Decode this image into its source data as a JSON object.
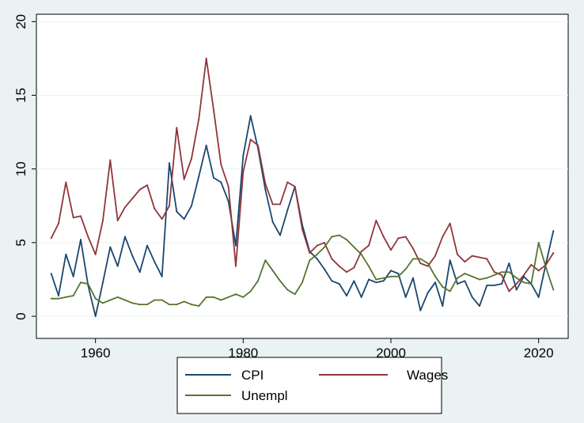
{
  "chart_data": {
    "type": "line",
    "title": "",
    "xlabel": "",
    "ylabel": "",
    "xlim": [
      1952,
      2024
    ],
    "ylim": [
      -1.5,
      20.5
    ],
    "x_ticks": [
      1960,
      1980,
      2000,
      2020
    ],
    "y_ticks": [
      0,
      5,
      10,
      15,
      20
    ],
    "x_tick_labels": [
      "1960",
      "1980",
      "2000",
      "2020"
    ],
    "y_tick_labels": [
      "0",
      "5",
      "10",
      "15",
      "20"
    ],
    "grid": "horizontal",
    "legend_position": "bottom",
    "x": [
      1954,
      1955,
      1956,
      1957,
      1958,
      1959,
      1960,
      1961,
      1962,
      1963,
      1964,
      1965,
      1966,
      1967,
      1968,
      1969,
      1970,
      1971,
      1972,
      1973,
      1974,
      1975,
      1976,
      1977,
      1978,
      1979,
      1980,
      1981,
      1982,
      1983,
      1984,
      1985,
      1986,
      1987,
      1988,
      1989,
      1990,
      1991,
      1992,
      1993,
      1994,
      1995,
      1996,
      1997,
      1998,
      1999,
      2000,
      2001,
      2002,
      2003,
      2004,
      2005,
      2006,
      2007,
      2008,
      2009,
      2010,
      2011,
      2012,
      2013,
      2014,
      2015,
      2016,
      2017,
      2018,
      2019,
      2020,
      2021,
      2022
    ],
    "series": [
      {
        "name": "CPI",
        "color": "#1a476f",
        "values": [
          2.9,
          1.4,
          4.2,
          2.7,
          5.2,
          2.1,
          0.0,
          2.3,
          4.7,
          3.4,
          5.4,
          4.1,
          3.0,
          4.8,
          3.7,
          2.7,
          10.4,
          7.1,
          6.6,
          7.5,
          9.5,
          11.6,
          9.4,
          9.1,
          7.8,
          4.8,
          10.9,
          13.6,
          11.4,
          8.6,
          6.4,
          5.5,
          7.2,
          8.8,
          6.2,
          4.4,
          3.9,
          3.2,
          2.4,
          2.2,
          1.4,
          2.4,
          1.3,
          2.5,
          2.3,
          2.4,
          3.1,
          2.9,
          1.3,
          2.6,
          0.4,
          1.6,
          2.3,
          0.7,
          3.8,
          2.2,
          2.4,
          1.3,
          0.7,
          2.1,
          2.1,
          2.2,
          3.6,
          1.8,
          2.7,
          2.2,
          1.3,
          3.6,
          5.8
        ]
      },
      {
        "name": "Wages",
        "color": "#90353b",
        "values": [
          5.3,
          6.3,
          9.1,
          6.7,
          6.8,
          5.4,
          4.2,
          6.5,
          10.6,
          6.5,
          7.4,
          8.0,
          8.6,
          8.9,
          7.3,
          6.6,
          7.5,
          12.8,
          9.3,
          10.7,
          13.4,
          17.5,
          14.0,
          10.3,
          8.8,
          3.4,
          9.8,
          12.0,
          11.6,
          9.0,
          7.6,
          7.6,
          9.1,
          8.8,
          5.9,
          4.3,
          4.8,
          5.0,
          3.9,
          3.4,
          3.0,
          3.3,
          4.4,
          4.8,
          6.5,
          5.4,
          4.5,
          5.3,
          5.4,
          4.6,
          3.6,
          3.4,
          4.1,
          5.4,
          6.3,
          4.2,
          3.7,
          4.1,
          4.0,
          3.9,
          3.0,
          2.8,
          1.7,
          2.2,
          2.8,
          3.5,
          3.1,
          3.5,
          4.3
        ]
      },
      {
        "name": "Unempl",
        "color": "#55752f",
        "values": [
          1.2,
          1.2,
          1.3,
          1.4,
          2.3,
          2.2,
          1.2,
          0.9,
          1.1,
          1.3,
          1.1,
          0.9,
          0.8,
          0.8,
          1.1,
          1.1,
          0.8,
          0.8,
          1.0,
          0.8,
          0.7,
          1.3,
          1.3,
          1.1,
          1.3,
          1.5,
          1.3,
          1.7,
          2.4,
          3.8,
          3.1,
          2.4,
          1.8,
          1.5,
          2.3,
          3.8,
          4.2,
          4.7,
          5.4,
          5.5,
          5.2,
          4.7,
          4.2,
          3.4,
          2.5,
          2.6,
          2.7,
          2.7,
          3.2,
          3.9,
          3.9,
          3.6,
          2.7,
          2.0,
          1.7,
          2.6,
          2.9,
          2.7,
          2.5,
          2.6,
          2.8,
          3.0,
          3.0,
          2.6,
          2.3,
          2.2,
          5.0,
          3.3,
          1.8
        ]
      }
    ]
  }
}
